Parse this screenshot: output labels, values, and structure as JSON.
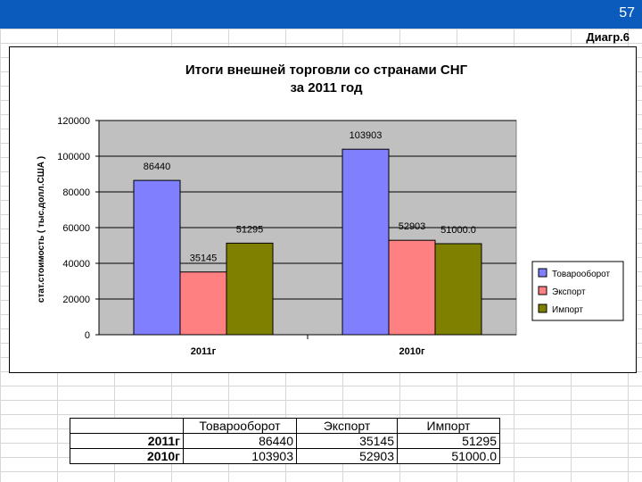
{
  "page_number": "57",
  "diagram_label": "Диагр.6",
  "table": {
    "headers": [
      "",
      "Товарооборот",
      "Экспорт",
      "Импорт"
    ],
    "rows": [
      {
        "label": "2011г",
        "values": [
          "86440",
          "35145",
          "51295"
        ]
      },
      {
        "label": "2010г",
        "values": [
          "103903",
          "52903",
          "51000.0"
        ]
      }
    ]
  },
  "chart_data": {
    "type": "bar",
    "title": "Итоги внешней торговли со странами СНГ за 2011 год",
    "title_lines": [
      "Итоги внешней торговли со странами СНГ",
      "за 2011 год"
    ],
    "ylabel": "стат.стоимость ( тыс.долл.США )",
    "xlabel": "",
    "categories": [
      "2011г",
      "2010г"
    ],
    "series": [
      {
        "name": "Товарооборот",
        "values": [
          86440,
          103903
        ],
        "labels": [
          "86440",
          "103903"
        ],
        "color": "#8080ff"
      },
      {
        "name": "Экспорт",
        "values": [
          35145,
          52903
        ],
        "labels": [
          "35145",
          "52903"
        ],
        "color": "#ff8080"
      },
      {
        "name": "Импорт",
        "values": [
          51295,
          51000.0
        ],
        "labels": [
          "51295",
          "51000.0"
        ],
        "color": "#808000"
      }
    ],
    "ylim": [
      0,
      120000
    ],
    "yticks": [
      0,
      20000,
      40000,
      60000,
      80000,
      100000,
      120000
    ],
    "ytick_labels": [
      "0",
      "20000",
      "40000",
      "60000",
      "80000",
      "100000",
      "120000"
    ],
    "grid": true,
    "legend_position": "right",
    "plot_background": "#c0c0c0"
  }
}
